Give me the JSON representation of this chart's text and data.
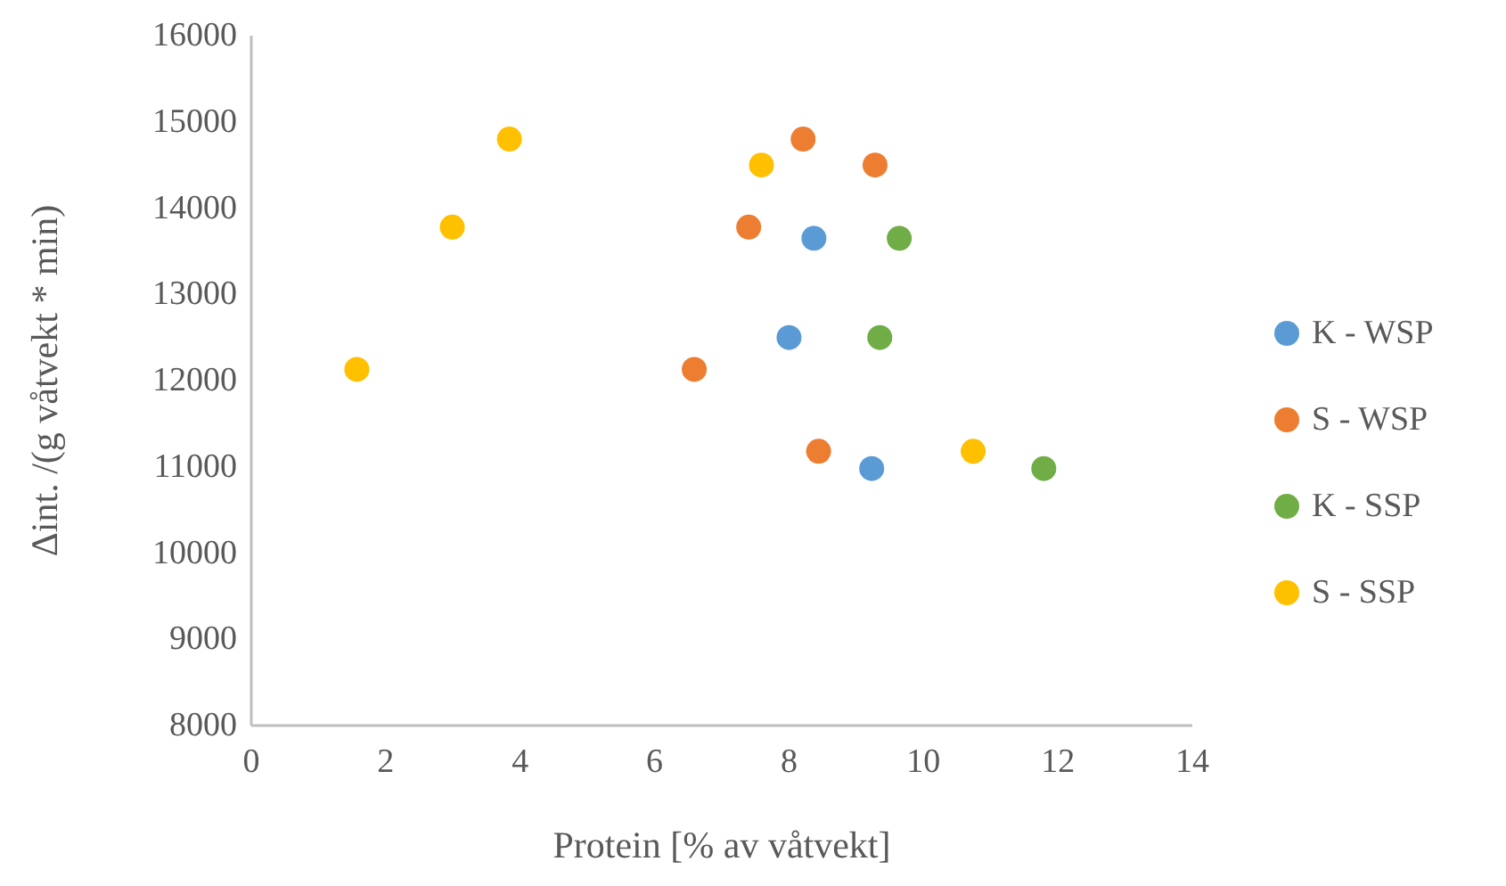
{
  "chart_data": {
    "type": "scatter",
    "xlabel": "Protein [% av våtvekt]",
    "ylabel": "Δint. /(g våtvekt * min)",
    "xlim": [
      0,
      14
    ],
    "xticks": [
      0,
      2,
      4,
      6,
      8,
      10,
      12,
      14
    ],
    "ylim": [
      8000,
      16000
    ],
    "yticks": [
      8000,
      9000,
      10000,
      11000,
      12000,
      13000,
      14000,
      15000,
      16000
    ],
    "grid": false,
    "legend": "right",
    "marker": "circle",
    "series": [
      {
        "name": "K - WSP",
        "color": "#5b9bd5",
        "x": [
          8.37,
          8.0,
          9.23
        ],
        "values": [
          13650,
          12500,
          10980
        ]
      },
      {
        "name": "S - WSP",
        "color": "#ed7d31",
        "x": [
          8.21,
          9.28,
          7.4,
          6.59,
          8.44
        ],
        "values": [
          14800,
          14500,
          13780,
          12130,
          11180
        ]
      },
      {
        "name": "K - SSP",
        "color": "#70ad47",
        "x": [
          9.64,
          9.35,
          11.79
        ],
        "values": [
          13650,
          12500,
          10980
        ]
      },
      {
        "name": "S - SSP",
        "color": "#ffc000",
        "x": [
          3.84,
          7.59,
          2.99,
          1.57,
          10.74
        ],
        "values": [
          14800,
          14500,
          13780,
          12130,
          11180
        ]
      }
    ]
  }
}
